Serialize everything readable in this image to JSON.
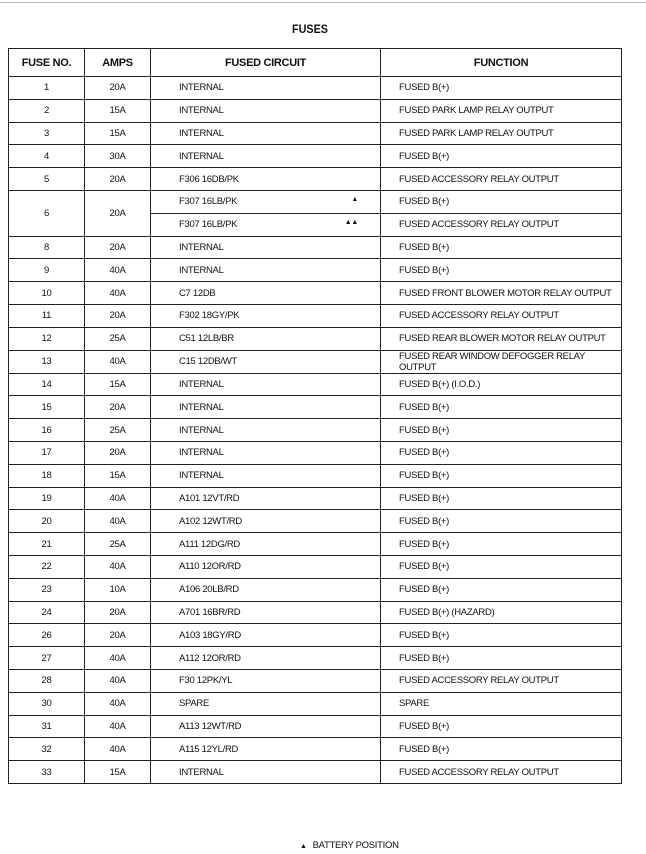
{
  "title": "FUSES",
  "headers": [
    "FUSE NO.",
    "AMPS",
    "FUSED CIRCUIT",
    "FUNCTION"
  ],
  "rows": [
    {
      "no": "1",
      "amps": "20A",
      "circuits": [
        {
          "circuit": "INTERNAL",
          "function": "FUSED B(+)"
        }
      ]
    },
    {
      "no": "2",
      "amps": "15A",
      "circuits": [
        {
          "circuit": "INTERNAL",
          "function": "FUSED PARK LAMP RELAY OUTPUT"
        }
      ]
    },
    {
      "no": "3",
      "amps": "15A",
      "circuits": [
        {
          "circuit": "INTERNAL",
          "function": "FUSED PARK LAMP RELAY OUTPUT"
        }
      ]
    },
    {
      "no": "4",
      "amps": "30A",
      "circuits": [
        {
          "circuit": "INTERNAL",
          "function": "FUSED B(+)"
        }
      ]
    },
    {
      "no": "5",
      "amps": "20A",
      "circuits": [
        {
          "circuit": "F306 16DB/PK",
          "function": "FUSED ACCESSORY RELAY OUTPUT"
        }
      ]
    },
    {
      "no": "6",
      "amps": "20A",
      "circuits": [
        {
          "circuit": "F307 16LB/PK",
          "mark": "▲",
          "function": "FUSED B(+)"
        },
        {
          "circuit": "F307 16LB/PK",
          "mark": "▲▲",
          "function": "FUSED ACCESSORY RELAY OUTPUT"
        }
      ]
    },
    {
      "no": "8",
      "amps": "20A",
      "circuits": [
        {
          "circuit": "INTERNAL",
          "function": "FUSED B(+)"
        }
      ]
    },
    {
      "no": "9",
      "amps": "40A",
      "circuits": [
        {
          "circuit": "INTERNAL",
          "function": "FUSED B(+)"
        }
      ]
    },
    {
      "no": "10",
      "amps": "40A",
      "circuits": [
        {
          "circuit": "C7 12DB",
          "function": "FUSED FRONT BLOWER MOTOR RELAY OUTPUT"
        }
      ]
    },
    {
      "no": "11",
      "amps": "20A",
      "circuits": [
        {
          "circuit": "F302 18GY/PK",
          "function": "FUSED ACCESSORY RELAY OUTPUT"
        }
      ]
    },
    {
      "no": "12",
      "amps": "25A",
      "circuits": [
        {
          "circuit": "C51 12LB/BR",
          "function": "FUSED REAR BLOWER MOTOR RELAY OUTPUT"
        }
      ]
    },
    {
      "no": "13",
      "amps": "40A",
      "circuits": [
        {
          "circuit": "C15 12DB/WT",
          "function": "FUSED REAR WINDOW DEFOGGER RELAY OUTPUT"
        }
      ]
    },
    {
      "no": "14",
      "amps": "15A",
      "circuits": [
        {
          "circuit": "INTERNAL",
          "function": "FUSED B(+) (I.O.D.)"
        }
      ]
    },
    {
      "no": "15",
      "amps": "20A",
      "circuits": [
        {
          "circuit": "INTERNAL",
          "function": "FUSED B(+)"
        }
      ]
    },
    {
      "no": "16",
      "amps": "25A",
      "circuits": [
        {
          "circuit": "INTERNAL",
          "function": "FUSED B(+)"
        }
      ]
    },
    {
      "no": "17",
      "amps": "20A",
      "circuits": [
        {
          "circuit": "INTERNAL",
          "function": "FUSED B(+)"
        }
      ]
    },
    {
      "no": "18",
      "amps": "15A",
      "circuits": [
        {
          "circuit": "INTERNAL",
          "function": "FUSED B(+)"
        }
      ]
    },
    {
      "no": "19",
      "amps": "40A",
      "circuits": [
        {
          "circuit": "A101 12VT/RD",
          "function": "FUSED B(+)"
        }
      ]
    },
    {
      "no": "20",
      "amps": "40A",
      "circuits": [
        {
          "circuit": "A102 12WT/RD",
          "function": "FUSED B(+)"
        }
      ]
    },
    {
      "no": "21",
      "amps": "25A",
      "circuits": [
        {
          "circuit": "A111 12DG/RD",
          "function": "FUSED B(+)"
        }
      ]
    },
    {
      "no": "22",
      "amps": "40A",
      "circuits": [
        {
          "circuit": "A110 12OR/RD",
          "function": "FUSED B(+)"
        }
      ]
    },
    {
      "no": "23",
      "amps": "10A",
      "circuits": [
        {
          "circuit": "A106 20LB/RD",
          "function": "FUSED B(+)"
        }
      ]
    },
    {
      "no": "24",
      "amps": "20A",
      "circuits": [
        {
          "circuit": "A701 16BR/RD",
          "function": "FUSED B(+) (HAZARD)"
        }
      ]
    },
    {
      "no": "26",
      "amps": "20A",
      "circuits": [
        {
          "circuit": "A103 18GY/RD",
          "function": "FUSED B(+)"
        }
      ]
    },
    {
      "no": "27",
      "amps": "40A",
      "circuits": [
        {
          "circuit": "A112 12OR/RD",
          "function": "FUSED B(+)"
        }
      ]
    },
    {
      "no": "28",
      "amps": "40A",
      "circuits": [
        {
          "circuit": "F30 12PK/YL",
          "function": "FUSED ACCESSORY RELAY OUTPUT"
        }
      ]
    },
    {
      "no": "30",
      "amps": "40A",
      "circuits": [
        {
          "circuit": "SPARE",
          "function": "SPARE"
        }
      ]
    },
    {
      "no": "31",
      "amps": "40A",
      "circuits": [
        {
          "circuit": "A113 12WT/RD",
          "function": "FUSED B(+)"
        }
      ]
    },
    {
      "no": "32",
      "amps": "40A",
      "circuits": [
        {
          "circuit": "A115 12YL/RD",
          "function": "FUSED B(+)"
        }
      ]
    },
    {
      "no": "33",
      "amps": "15A",
      "circuits": [
        {
          "circuit": "INTERNAL",
          "function": "FUSED ACCESSORY RELAY OUTPUT"
        }
      ]
    }
  ],
  "footer": {
    "mark": "▲",
    "text": "BATTERY POSITION"
  }
}
